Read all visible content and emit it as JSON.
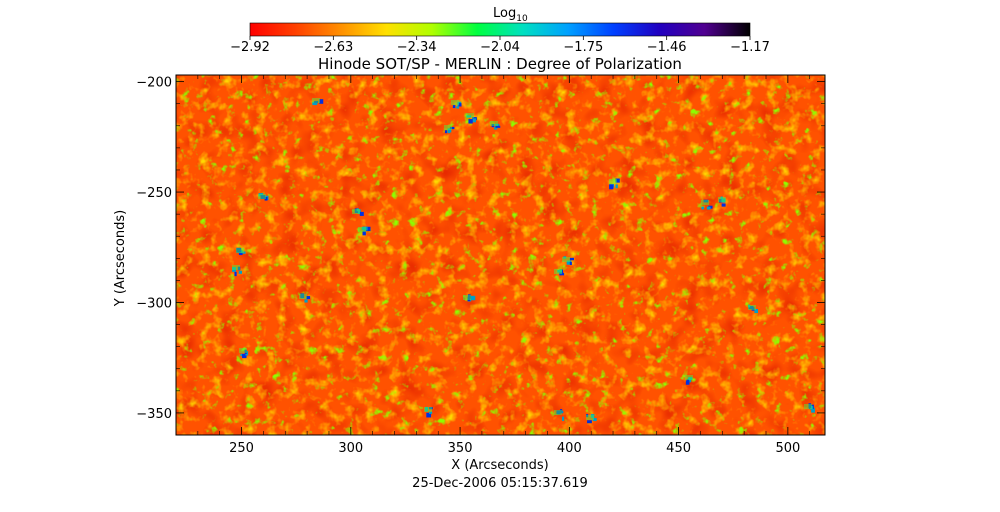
{
  "chart_data": {
    "type": "heatmap",
    "title": "Hinode SOT/SP - MERLIN : Degree of Polarization",
    "xlabel": "X (Arcseconds)",
    "ylabel": "Y (Arcseconds)",
    "footer": "25-Dec-2006 05:15:37.619",
    "xlim": [
      220,
      517
    ],
    "ylim": [
      -360,
      -197
    ],
    "x_ticks": [
      250,
      300,
      350,
      400,
      450,
      500
    ],
    "y_ticks": [
      -200,
      -250,
      -300,
      -350
    ],
    "x_tick_labels": [
      "250",
      "300",
      "350",
      "400",
      "450",
      "500"
    ],
    "y_tick_labels": [
      "−200",
      "−250",
      "−300",
      "−350"
    ],
    "colorbar": {
      "label_base": "Log",
      "label_sub": "10",
      "min": -2.92,
      "max": -1.17,
      "tick_labels": [
        "−2.92",
        "−2.63",
        "−2.34",
        "−2.04",
        "−1.75",
        "−1.46",
        "−1.17"
      ],
      "colormap": [
        "#ff0000",
        "#ff4000",
        "#ff9000",
        "#ffe000",
        "#b0ff00",
        "#00ff40",
        "#00e0c0",
        "#00a0ff",
        "#0040ff",
        "#2000c0",
        "#500090",
        "#000000"
      ]
    },
    "field_note": "Dominant values near -2.8 (red/orange) with scattered yellow/green network and small blue patches near -1.6"
  }
}
